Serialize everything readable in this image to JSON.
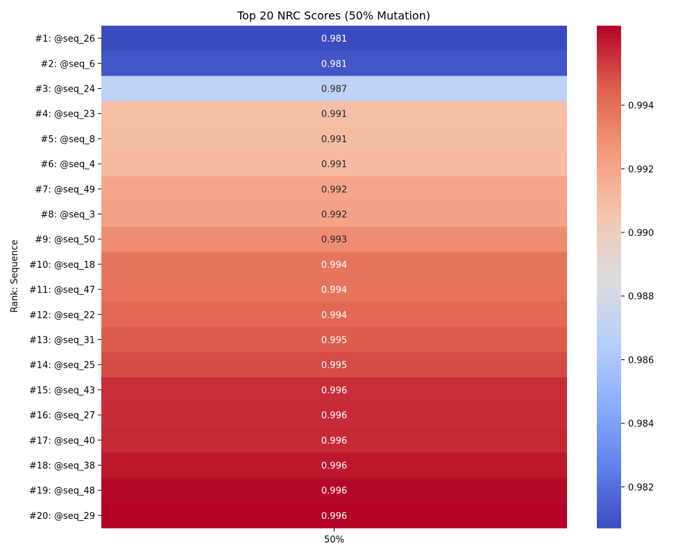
{
  "chart_data": {
    "type": "heatmap",
    "title": "Top 20 NRC Scores (50% Mutation)",
    "xlabel": "",
    "ylabel": "Rank: Sequence",
    "x_categories": [
      "50%"
    ],
    "y_categories": [
      "#1: @seq_26",
      "#2: @seq_6",
      "#3: @seq_24",
      "#4: @seq_23",
      "#5: @seq_8",
      "#6: @seq_4",
      "#7: @seq_49",
      "#8: @seq_3",
      "#9: @seq_50",
      "#10: @seq_18",
      "#11: @seq_47",
      "#12: @seq_22",
      "#13: @seq_31",
      "#14: @seq_25",
      "#15: @seq_43",
      "#16: @seq_27",
      "#17: @seq_40",
      "#18: @seq_38",
      "#19: @seq_48",
      "#20: @seq_29"
    ],
    "values": [
      0.98071,
      0.98108,
      0.98689,
      0.99088,
      0.99094,
      0.99101,
      0.99204,
      0.99211,
      0.993,
      0.9938,
      0.99385,
      0.99425,
      0.9946,
      0.99495,
      0.9956,
      0.99565,
      0.9957,
      0.9961,
      0.9964,
      0.9965
    ],
    "annotations": [
      "0.981",
      "0.981",
      "0.987",
      "0.991",
      "0.991",
      "0.991",
      "0.992",
      "0.992",
      "0.993",
      "0.994",
      "0.994",
      "0.994",
      "0.995",
      "0.995",
      "0.996",
      "0.996",
      "0.996",
      "0.996",
      "0.996",
      "0.996"
    ],
    "colormap": "coolwarm",
    "vmin": 0.98071,
    "vmax": 0.9965,
    "colorbar_ticks": [
      0.982,
      0.984,
      0.986,
      0.988,
      0.99,
      0.992,
      0.994
    ],
    "colorbar_tick_labels": [
      "0.982",
      "0.984",
      "0.986",
      "0.988",
      "0.990",
      "0.992",
      "0.994"
    ]
  }
}
